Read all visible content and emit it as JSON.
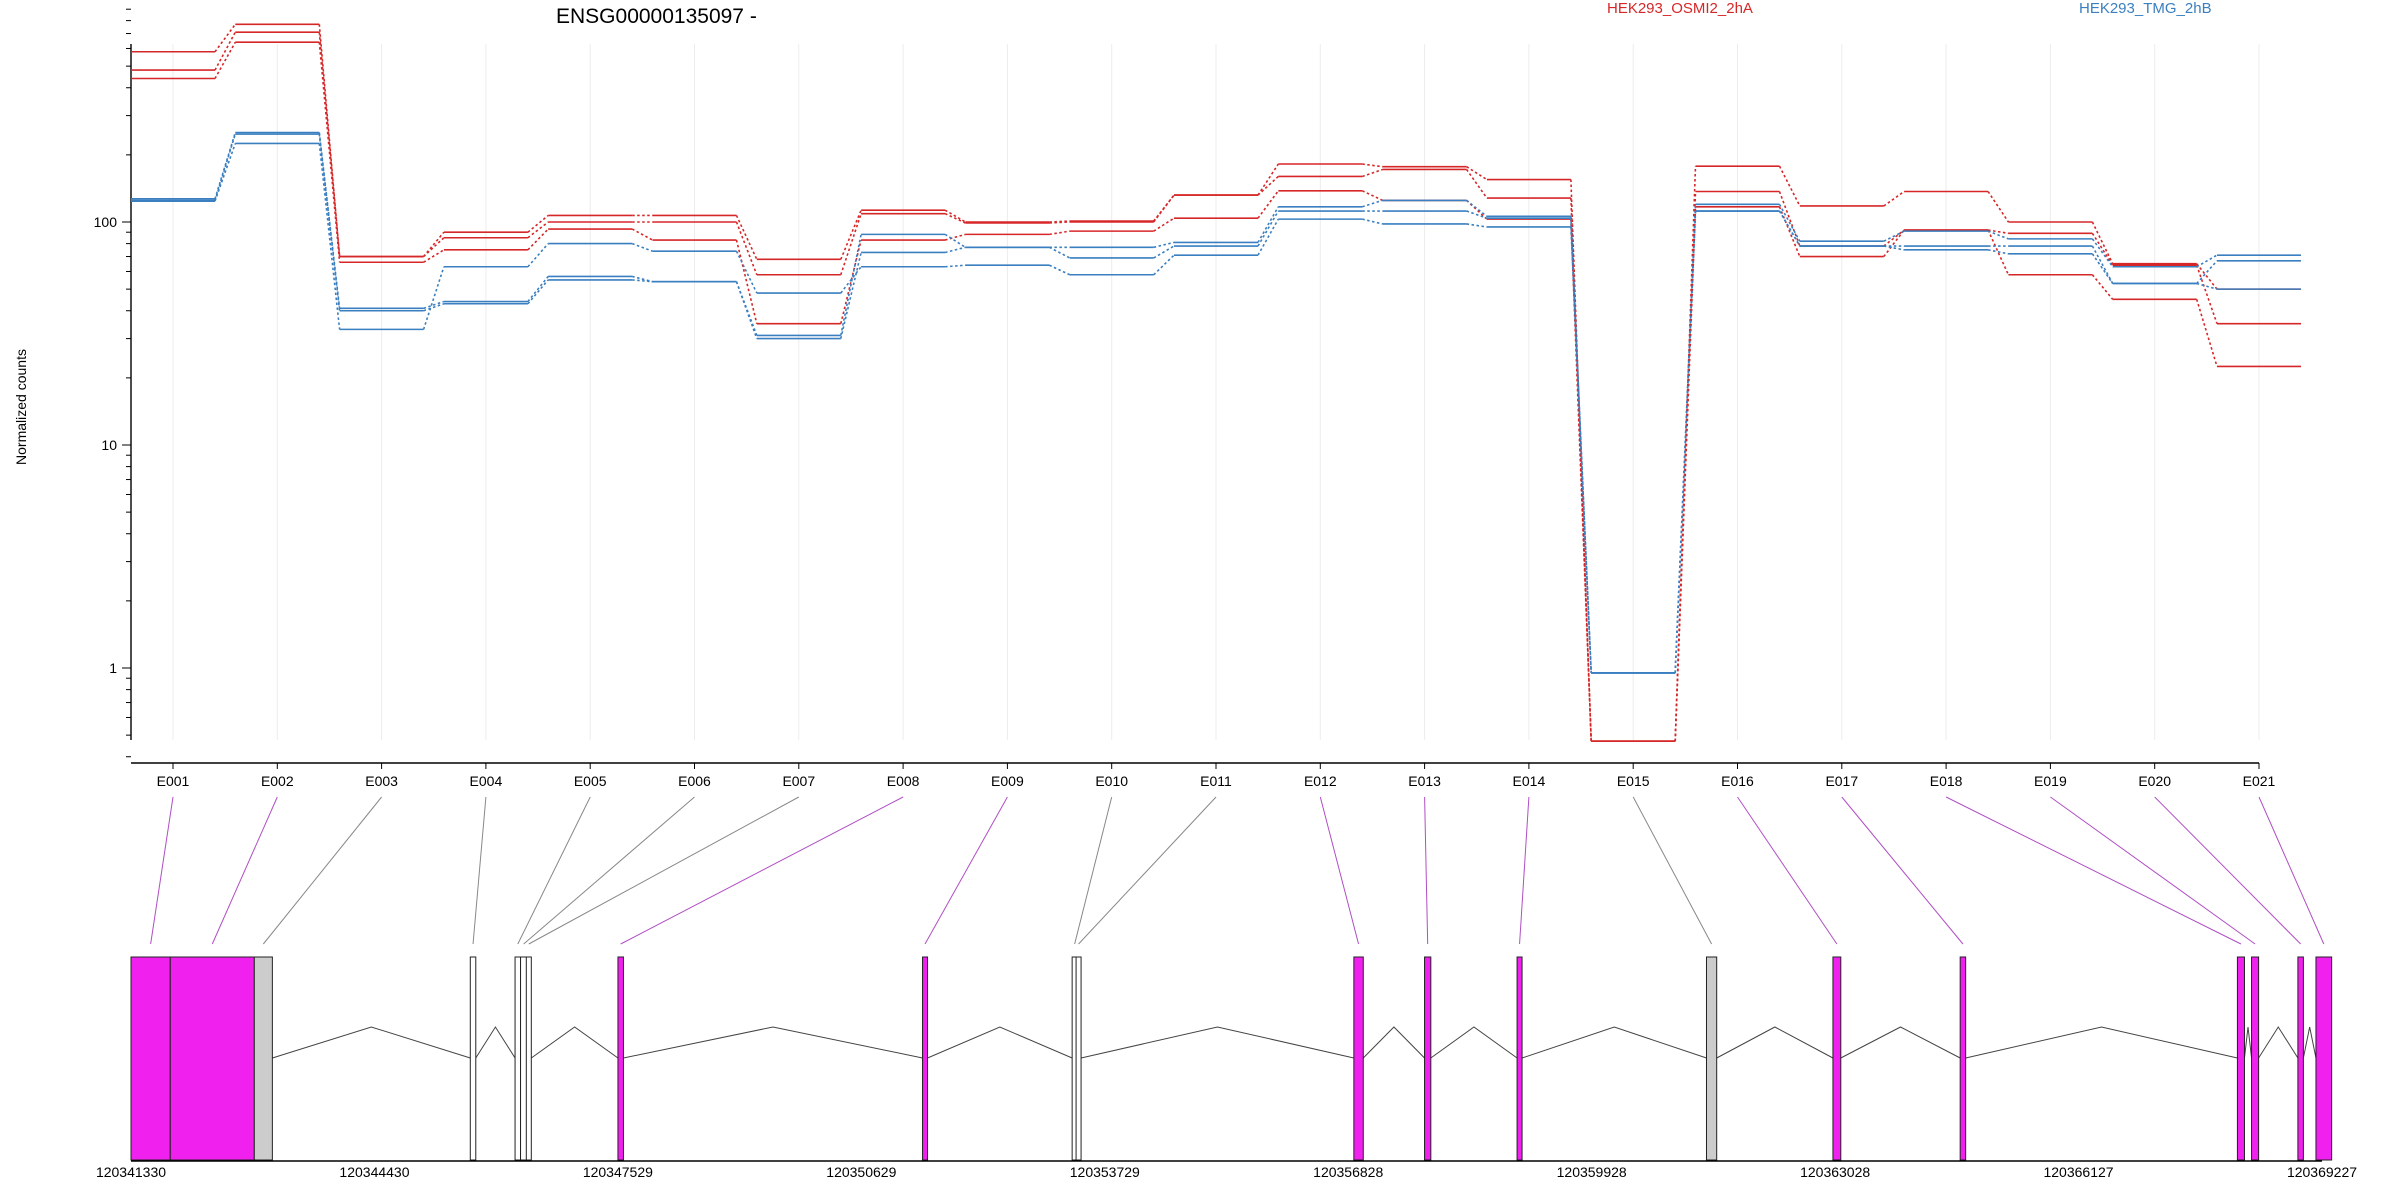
{
  "chart_data": {
    "type": "line",
    "title": "ENSG00000135097 -",
    "ylabel": "Normalized counts",
    "xlabel": "",
    "yscale": "log",
    "ylim": [
      0.4,
      1000
    ],
    "yticks": [
      1,
      10,
      100
    ],
    "ytick_labels": [
      "1",
      "10",
      "100"
    ],
    "grid": "vertical",
    "legend": [
      {
        "name": "HEK293_OSMI2_2hA",
        "color": "#d62728"
      },
      {
        "name": "HEK293_TMG_2hB",
        "color": "#3a7fc0"
      }
    ],
    "legend_placement": "top",
    "categories": [
      "E001",
      "E002",
      "E003",
      "E004",
      "E005",
      "E006",
      "E007",
      "E008",
      "E009",
      "E010",
      "E011",
      "E012",
      "E013",
      "E014",
      "E015",
      "E016",
      "E017",
      "E018",
      "E019",
      "E020",
      "E021"
    ],
    "series": [
      {
        "color": "#d62728",
        "values": [
          580,
          770,
          70,
          90,
          107,
          107,
          68,
          113,
          100,
          101,
          132,
          182,
          177,
          155,
          0.47,
          178,
          118,
          137,
          100,
          65,
          50
        ]
      },
      {
        "color": "#d62728",
        "values": [
          480,
          710,
          70,
          85,
          100,
          100,
          58,
          109,
          99,
          100,
          132,
          160,
          172,
          128,
          0.47,
          137,
          78,
          92,
          89,
          64,
          35
        ]
      },
      {
        "color": "#d62728",
        "values": [
          440,
          640,
          66,
          75,
          93,
          83,
          35,
          83,
          88,
          91,
          104,
          138,
          125,
          103,
          0.47,
          117,
          70,
          92,
          58,
          45,
          22.5
        ]
      },
      {
        "color": "#3a7fc0",
        "values": [
          127,
          252,
          41,
          44,
          57,
          54,
          31,
          88,
          77,
          77,
          81,
          117,
          125,
          106,
          0.95,
          120,
          82,
          91,
          84,
          63,
          71
        ]
      },
      {
        "color": "#3a7fc0",
        "values": [
          125,
          248,
          40,
          43,
          55,
          54,
          30,
          73,
          77,
          69,
          78,
          112,
          112,
          104,
          0.95,
          112,
          78,
          78,
          78,
          53,
          67
        ]
      },
      {
        "color": "#3a7fc0",
        "values": [
          124,
          225,
          33,
          63,
          80,
          74,
          48,
          63,
          64,
          58,
          71,
          103,
          98,
          95,
          0.95,
          112,
          78,
          75,
          72,
          53,
          50
        ]
      }
    ],
    "gene_model": {
      "genomic_range": [
        120341330,
        120369227
      ],
      "genomic_ticks": [
        120341330,
        120344430,
        120347529,
        120350629,
        120353729,
        120356828,
        120359928,
        120363028,
        120366127,
        120369227
      ],
      "genomic_tick_labels": [
        "120341330",
        "120344430",
        "120347529",
        "120350629",
        "120353729",
        "120356828",
        "120359928",
        "120363028",
        "120366127",
        "120369227"
      ],
      "exons": [
        {
          "id": "E001",
          "start": 120341330,
          "end": 120341830,
          "significant": true
        },
        {
          "id": "E002",
          "start": 120341830,
          "end": 120342900,
          "significant": true
        },
        {
          "id": "E003",
          "start": 120342900,
          "end": 120343130,
          "significant": false
        },
        {
          "id": "E004",
          "start": 120345650,
          "end": 120345720,
          "significant": false
        },
        {
          "id": "E005",
          "start": 120346220,
          "end": 120346290,
          "significant": false
        },
        {
          "id": "E006",
          "start": 120346290,
          "end": 120346370,
          "significant": false
        },
        {
          "id": "E007",
          "start": 120346370,
          "end": 120346420,
          "significant": false
        },
        {
          "id": "E008",
          "start": 120347530,
          "end": 120347600,
          "significant": true
        },
        {
          "id": "E009",
          "start": 120351410,
          "end": 120351470,
          "significant": true
        },
        {
          "id": "E010",
          "start": 120353320,
          "end": 120353370,
          "significant": false
        },
        {
          "id": "E011",
          "start": 120353370,
          "end": 120353420,
          "significant": false
        },
        {
          "id": "E012",
          "start": 120356900,
          "end": 120357020,
          "significant": true
        },
        {
          "id": "E013",
          "start": 120357800,
          "end": 120357880,
          "significant": true
        },
        {
          "id": "E014",
          "start": 120358980,
          "end": 120359040,
          "significant": true
        },
        {
          "id": "E015",
          "start": 120361390,
          "end": 120361520,
          "significant": false
        },
        {
          "id": "E016",
          "start": 120363000,
          "end": 120363100,
          "significant": true
        },
        {
          "id": "E017",
          "start": 120364620,
          "end": 120364690,
          "significant": true
        },
        {
          "id": "E018",
          "start": 120368150,
          "end": 120368240,
          "significant": true
        },
        {
          "id": "E019",
          "start": 120368330,
          "end": 120368420,
          "significant": true
        },
        {
          "id": "E020",
          "start": 120368920,
          "end": 120368990,
          "significant": true
        },
        {
          "id": "E021",
          "start": 120369150,
          "end": 120369350,
          "significant": true
        }
      ],
      "significant_color": "#f020ee",
      "nonsignificant_color": "#cccccc",
      "link_significant_color": "#b04fc4",
      "link_color": "#888888"
    }
  }
}
